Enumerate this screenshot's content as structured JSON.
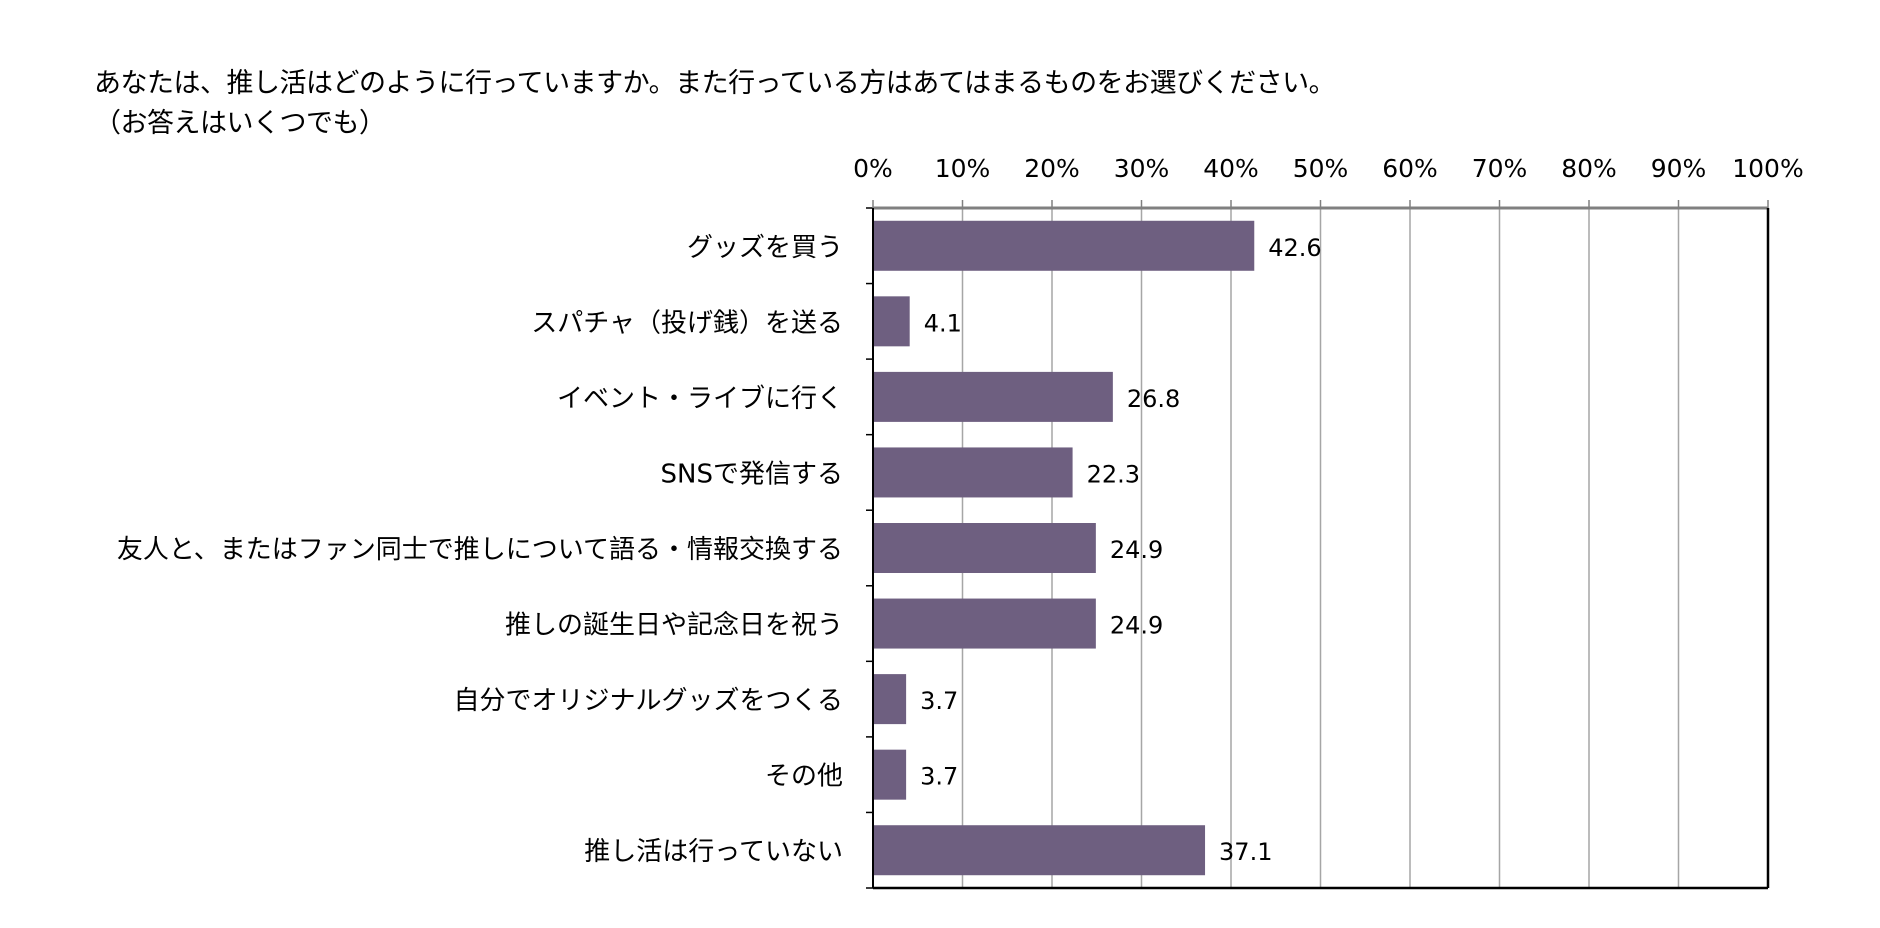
{
  "title": {
    "line1": "あなたは、推し活はどのように行っていますか。また行っている方はあてはまるものをお選びください。",
    "line2": "（お答えはいくつでも）"
  },
  "chart_data": {
    "type": "bar",
    "orientation": "horizontal",
    "unit": "%",
    "categories": [
      "グッズを買う",
      "スパチャ（投げ銭）を送る",
      "イベント・ライブに行く",
      "SNSで発信する",
      "友人と、またはファン同士で推しについて語る・情報交換する",
      "推しの誕生日や記念日を祝う",
      "自分でオリジナルグッズをつくる",
      "その他",
      "推し活は行っていない"
    ],
    "values": [
      42.6,
      4.1,
      26.8,
      22.3,
      24.9,
      24.9,
      3.7,
      3.7,
      37.1
    ],
    "value_labels": [
      "42.6",
      "4.1",
      "26.8",
      "22.3",
      "24.9",
      "24.9",
      "3.7",
      "3.7",
      "37.1"
    ],
    "xlim": [
      0,
      100
    ],
    "xticks": [
      0,
      10,
      20,
      30,
      40,
      50,
      60,
      70,
      80,
      90,
      100
    ],
    "xtick_labels": [
      "0%",
      "10%",
      "20%",
      "30%",
      "40%",
      "50%",
      "60%",
      "70%",
      "80%",
      "90%",
      "100%"
    ],
    "axis_position": "top",
    "grid": true,
    "legend": "none",
    "bar_color": "#6e5f80",
    "grid_color": "#a6a6a6",
    "axis_color": "#000000"
  }
}
